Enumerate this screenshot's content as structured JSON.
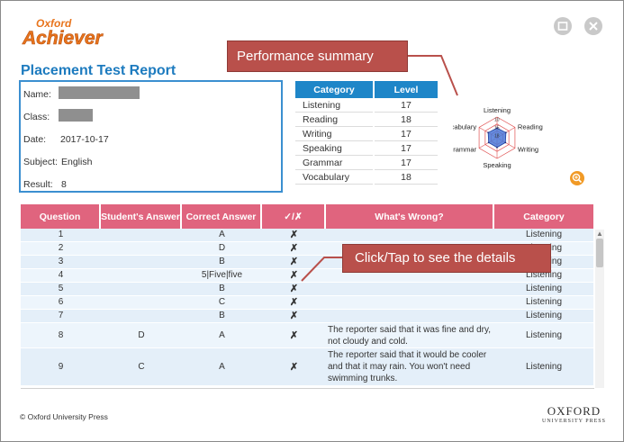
{
  "app": {
    "brand_top": "Oxford",
    "brand_main": "Achiever"
  },
  "report": {
    "title": "Placement Test Report"
  },
  "info": {
    "name_label": "Name:",
    "class_label": "Class:",
    "date_label": "Date:",
    "date_value": "2017-10-17",
    "subject_label": "Subject:",
    "subject_value": "English",
    "result_label": "Result:",
    "result_value": "8"
  },
  "category_table": {
    "headers": [
      "Category",
      "Level"
    ],
    "rows": [
      {
        "category": "Listening",
        "level": "17"
      },
      {
        "category": "Reading",
        "level": "18"
      },
      {
        "category": "Writing",
        "level": "17"
      },
      {
        "category": "Speaking",
        "level": "17"
      },
      {
        "category": "Grammar",
        "level": "17"
      },
      {
        "category": "Vocabulary",
        "level": "18"
      }
    ]
  },
  "radar": {
    "axes": [
      "Listening",
      "Reading",
      "Writing",
      "Speaking",
      "Grammar",
      "Vocabulary"
    ],
    "values": [
      17,
      18,
      17,
      17,
      17,
      18
    ],
    "ticks": [
      "10",
      "15",
      "18"
    ],
    "fill_color": "#4a78d8",
    "grid_color": "#e05050"
  },
  "callouts": {
    "performance": "Performance summary",
    "details": "Click/Tap to see the details"
  },
  "answers": {
    "headers": [
      "Question",
      "Student's Answer",
      "Correct Answer",
      "✓/✗",
      "What's Wrong?",
      "Category"
    ],
    "rows": [
      {
        "q": "1",
        "student": "",
        "correct": "A",
        "mark": "✗",
        "wrong": "",
        "category": "Listening"
      },
      {
        "q": "2",
        "student": "",
        "correct": "D",
        "mark": "✗",
        "wrong": "",
        "category": "Listening"
      },
      {
        "q": "3",
        "student": "",
        "correct": "B",
        "mark": "✗",
        "wrong": "",
        "category": "Listening"
      },
      {
        "q": "4",
        "student": "",
        "correct": "5|Five|five",
        "mark": "✗",
        "wrong": "",
        "category": "Listening"
      },
      {
        "q": "5",
        "student": "",
        "correct": "B",
        "mark": "✗",
        "wrong": "",
        "category": "Listening"
      },
      {
        "q": "6",
        "student": "",
        "correct": "C",
        "mark": "✗",
        "wrong": "",
        "category": "Listening"
      },
      {
        "q": "7",
        "student": "",
        "correct": "B",
        "mark": "✗",
        "wrong": "",
        "category": "Listening"
      },
      {
        "q": "8",
        "student": "D",
        "correct": "A",
        "mark": "✗",
        "wrong": "The reporter said that it was fine and dry, not cloudy and cold.",
        "category": "Listening"
      },
      {
        "q": "9",
        "student": "C",
        "correct": "A",
        "mark": "✗",
        "wrong": "The reporter said that it would be cooler and that it may rain. You won't need swimming trunks.",
        "category": "Listening"
      }
    ]
  },
  "footer": {
    "copyright": "© Oxford University Press",
    "oup_big": "OXFORD",
    "oup_small": "UNIVERSITY PRESS"
  },
  "colors": {
    "title_blue": "#1d7bbf",
    "header_pink": "#e0647e",
    "header_blue": "#1e86c8",
    "callout_red": "#b9504b",
    "brand_orange": "#e8741c"
  }
}
